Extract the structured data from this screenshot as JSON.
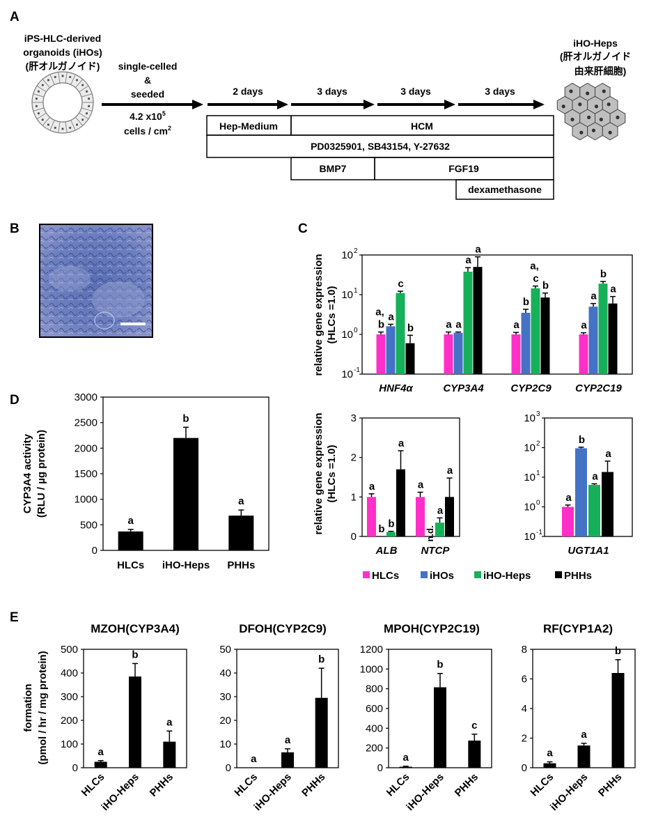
{
  "panel_letters": {
    "A": "A",
    "B": "B",
    "C": "C",
    "D": "D",
    "E": "E"
  },
  "colors": {
    "HLCs": "#ff2fc8",
    "iHOs": "#4472c4",
    "iHO-Heps": "#17b05a",
    "PHHs": "#000000",
    "hcm_box": "#ffffff",
    "cell_fill": "#bfbfbf"
  },
  "schematic": {
    "organoid_label": [
      "iPS-HLC-derived",
      "organoids (iHOs)",
      "(肝オルガノイド)"
    ],
    "step_label": [
      "single-celled",
      "&",
      "seeded"
    ],
    "density_label": [
      "4.2 x10",
      "5",
      "cells  / cm",
      "2"
    ],
    "durations": [
      "2 days",
      "3 days",
      "3 days",
      "3 days"
    ],
    "boxes": {
      "hep_medium": "Hep-Medium",
      "hcm": "HCM",
      "inhibitors": "PD0325901, SB43154, Y-27632",
      "bmp7": "BMP7",
      "fgf19": "FGF19",
      "dexamethasone": "dexamethasone"
    },
    "product_label": [
      "iHO-Heps",
      "(肝オルガノイド",
      "由来肝細胞)"
    ],
    "icons": [
      "organoid-ring-icon",
      "hepatocyte-cluster-icon",
      "micrograph-image"
    ]
  },
  "chart_data": [
    {
      "id": "C-top",
      "type": "bar",
      "scale": "log",
      "ylim": [
        0.1,
        100
      ],
      "y_tick_labels": [
        "10",
        "10",
        "10",
        "10"
      ],
      "y_tick_exponents": [
        "-1",
        "0",
        "1",
        "2"
      ],
      "ylabel": [
        "relative  gene expression",
        "(HLCs =1.0)"
      ],
      "categories": [
        "HNF4α",
        "CYP3A4",
        "CYP2C9",
        "CYP2C19"
      ],
      "series": [
        {
          "name": "HLCs",
          "values": [
            1.0,
            1.0,
            1.0,
            1.0
          ],
          "err": [
            0.15,
            0.15,
            0.12,
            0.1
          ]
        },
        {
          "name": "iHOs",
          "values": [
            1.6,
            1.1,
            3.5,
            5.0
          ],
          "err": [
            0.2,
            0.05,
            0.8,
            1.0
          ]
        },
        {
          "name": "iHO-Heps",
          "values": [
            11.0,
            38.0,
            14.5,
            19.0
          ],
          "err": [
            1.2,
            10.0,
            2.0,
            2.5
          ]
        },
        {
          "name": "PHHs",
          "values": [
            0.6,
            50.0,
            8.5,
            6.0
          ],
          "err": [
            0.35,
            40.0,
            2.5,
            3.0
          ]
        }
      ],
      "letters": [
        [
          "a,",
          "a",
          "c",
          "b"
        ],
        [
          "a",
          "a",
          "a",
          "a"
        ],
        [
          "a",
          "b",
          "a,",
          "b"
        ],
        [
          "a",
          "a",
          "b",
          "a"
        ]
      ],
      "letters_extra": [
        [
          "b",
          "",
          "",
          ""
        ],
        [
          "",
          "",
          "",
          ""
        ],
        [
          "",
          "",
          "c",
          ""
        ],
        [
          "",
          "",
          "",
          ""
        ]
      ]
    },
    {
      "id": "C-bottom-left",
      "type": "bar",
      "ylim": [
        0,
        3
      ],
      "y_ticks": [
        "0",
        "1",
        "2",
        "3"
      ],
      "ylabel": [
        "relative  gene expression",
        "(HLCs =1.0)"
      ],
      "categories": [
        "ALB",
        "NTCP"
      ],
      "series": [
        {
          "name": "HLCs",
          "values": [
            1.0,
            1.0
          ],
          "err": [
            0.08,
            0.12
          ]
        },
        {
          "name": "iHOs",
          "values": [
            0.0,
            0.0
          ],
          "err": [
            0,
            0
          ]
        },
        {
          "name": "iHO-Heps",
          "values": [
            0.11,
            0.35
          ],
          "err": [
            0.02,
            0.12
          ]
        },
        {
          "name": "PHHs",
          "values": [
            1.7,
            1.0
          ],
          "err": [
            0.47,
            0.48
          ]
        }
      ],
      "letters": [
        [
          "a",
          "b",
          "b",
          "a"
        ],
        [
          "a",
          "n.d.",
          "a",
          "a"
        ]
      ]
    },
    {
      "id": "C-bottom-right",
      "type": "bar",
      "scale": "log",
      "ylim": [
        0.1,
        1000
      ],
      "y_tick_labels": [
        "10",
        "10",
        "10",
        "10",
        "10"
      ],
      "y_tick_exponents": [
        "-1",
        "0",
        "1",
        "2",
        "3"
      ],
      "categories": [
        "UGT1A1"
      ],
      "series": [
        {
          "name": "HLCs",
          "values": [
            1.0
          ],
          "err": [
            0.15
          ]
        },
        {
          "name": "iHOs",
          "values": [
            95.0
          ],
          "err": [
            8
          ]
        },
        {
          "name": "iHO-Heps",
          "values": [
            5.5
          ],
          "err": [
            0.5
          ]
        },
        {
          "name": "PHHs",
          "values": [
            15.0
          ],
          "err": [
            20
          ]
        }
      ],
      "letters": [
        [
          "a",
          "b",
          "a",
          "a"
        ]
      ]
    },
    {
      "id": "D",
      "type": "bar",
      "ylim": [
        0,
        3000
      ],
      "y_ticks": [
        "0",
        "500",
        "1000",
        "1500",
        "2000",
        "2500",
        "3000"
      ],
      "ylabel": [
        "CYP3A4 activity",
        "(RLU / µg protein)"
      ],
      "categories": [
        "HLCs",
        "iHO-Heps",
        "PHHs"
      ],
      "values": [
        370,
        2200,
        680
      ],
      "err": [
        40,
        210,
        110
      ],
      "letters": [
        "a",
        "b",
        "a"
      ]
    },
    {
      "id": "E1",
      "type": "bar",
      "title": "MZOH(CYP3A4)",
      "ylim": [
        0,
        500
      ],
      "y_ticks": [
        "0",
        "100",
        "200",
        "300",
        "400",
        "500"
      ],
      "categories": [
        "HLCs",
        "iHO-Heps",
        "PHHs"
      ],
      "values": [
        25,
        385,
        110
      ],
      "err": [
        5,
        55,
        45
      ],
      "letters": [
        "a",
        "b",
        "a"
      ]
    },
    {
      "id": "E2",
      "type": "bar",
      "title": "DFOH(CYP2C9)",
      "ylim": [
        0,
        50
      ],
      "y_ticks": [
        "0",
        "10",
        "20",
        "30",
        "40",
        "50"
      ],
      "categories": [
        "HLCs",
        "iHO-Heps",
        "PHHs"
      ],
      "values": [
        0,
        6.5,
        29.5
      ],
      "err": [
        0,
        1.5,
        12.5
      ],
      "letters": [
        "a",
        "a",
        "b"
      ]
    },
    {
      "id": "E3",
      "type": "bar",
      "title": "MPOH(CYP2C19)",
      "ylim": [
        0,
        1200
      ],
      "y_ticks": [
        "0",
        "200",
        "400",
        "600",
        "800",
        "1000",
        "1200"
      ],
      "categories": [
        "HLCs",
        "iHO-Heps",
        "PHHs"
      ],
      "values": [
        10,
        815,
        275
      ],
      "err": [
        5,
        140,
        65
      ],
      "letters": [
        "a",
        "b",
        "c"
      ]
    },
    {
      "id": "E4",
      "type": "bar",
      "title": "RF(CYP1A2)",
      "ylim": [
        0,
        8
      ],
      "y_ticks": [
        "0",
        "2",
        "4",
        "6",
        "8"
      ],
      "categories": [
        "HLCs",
        "iHO-Heps",
        "PHHs"
      ],
      "values": [
        0.3,
        1.5,
        6.4
      ],
      "err": [
        0.1,
        0.15,
        0.9
      ],
      "letters": [
        "a",
        "a",
        "b"
      ]
    }
  ],
  "legend": [
    "HLCs",
    "iHOs",
    "iHO-Heps",
    "PHHs"
  ],
  "E_ylabel": [
    "formation",
    "(pmol / hr / mg protein)"
  ]
}
